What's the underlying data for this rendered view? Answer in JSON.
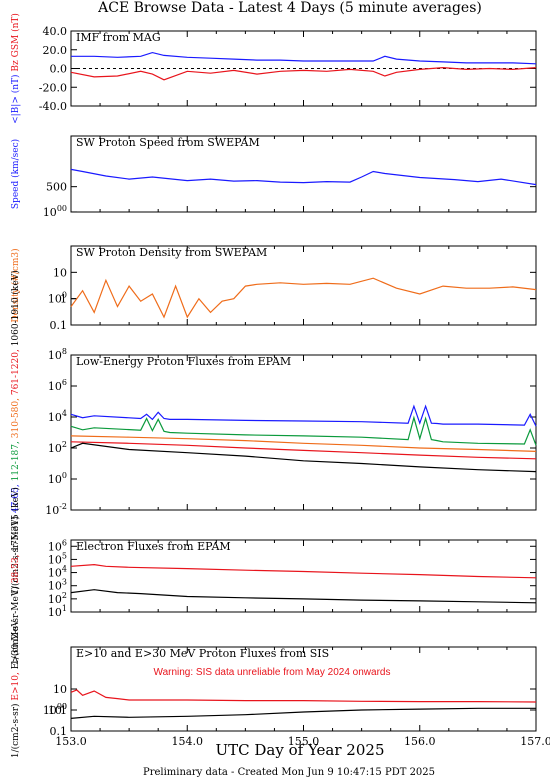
{
  "title": "ACE Browse Data - Latest 4 Days (5 minute averages)",
  "xlabel": "UTC Day of Year 2025",
  "footer": "Preliminary data - Created Mon Jun  9 10:47:15 PDT 2025",
  "colors": {
    "red": "#e8141c",
    "blue": "#1a1aff",
    "green": "#0b9a3c",
    "orange": "#ef6c1a",
    "black": "#000000",
    "warning": "#e8141c"
  },
  "chart_data": [
    {
      "type": "line",
      "title": "IMF from MAG",
      "ylabel_parts": [
        {
          "text": "<|B|> (nT)",
          "color": "blue"
        },
        {
          "text": "Bz GSM (nT)",
          "color": "red"
        }
      ],
      "xlim": [
        153.0,
        157.0
      ],
      "ylim": [
        -40,
        40
      ],
      "yscale": "linear",
      "yticks": [
        "-40.0",
        "-20.0",
        "0.0",
        "20.0",
        "40.0"
      ],
      "series": [
        {
          "color": "blue",
          "x": [
            153.0,
            153.2,
            153.4,
            153.6,
            153.7,
            153.8,
            154.0,
            154.2,
            154.4,
            154.6,
            154.8,
            155.0,
            155.2,
            155.4,
            155.6,
            155.7,
            155.8,
            156.0,
            156.2,
            156.4,
            156.6,
            156.8,
            157.0
          ],
          "y": [
            13,
            13,
            12,
            13,
            17,
            14,
            12,
            11,
            10,
            9,
            9,
            8,
            8,
            8,
            8,
            13,
            10,
            8,
            7,
            6,
            6,
            6,
            5
          ]
        },
        {
          "color": "red",
          "x": [
            153.0,
            153.2,
            153.4,
            153.6,
            153.7,
            153.8,
            154.0,
            154.2,
            154.4,
            154.6,
            154.8,
            155.0,
            155.2,
            155.4,
            155.6,
            155.7,
            155.8,
            156.0,
            156.2,
            156.4,
            156.6,
            156.8,
            157.0
          ],
          "y": [
            -4,
            -9,
            -8,
            -3,
            -6,
            -12,
            -3,
            -5,
            -2,
            -6,
            -3,
            -2,
            -3,
            -1,
            -3,
            -8,
            -4,
            -1,
            1,
            -1,
            0,
            -1,
            1
          ]
        }
      ]
    },
    {
      "type": "line",
      "title": "SW Proton Speed from SWEPAM",
      "ylabel_parts": [
        {
          "text": "Speed (km/sec)",
          "color": "blue"
        }
      ],
      "xlim": [
        153.0,
        157.0
      ],
      "ylim": [
        0,
        1500
      ],
      "yscale": "linear",
      "yticks": [
        "500",
        "1000"
      ],
      "series": [
        {
          "color": "blue",
          "x": [
            153.0,
            153.1,
            153.3,
            153.5,
            153.7,
            154.0,
            154.2,
            154.4,
            154.6,
            154.8,
            155.0,
            155.2,
            155.4,
            155.5,
            155.6,
            155.7,
            156.0,
            156.3,
            156.5,
            156.7,
            157.0
          ],
          "y": [
            840,
            800,
            710,
            650,
            690,
            620,
            650,
            610,
            620,
            590,
            580,
            600,
            590,
            690,
            800,
            760,
            680,
            640,
            600,
            650,
            540
          ]
        }
      ]
    },
    {
      "type": "line",
      "title": "SW Proton Density from SWEPAM",
      "ylabel_parts": [
        {
          "text": "Density (#/cm3)",
          "color": "orange"
        }
      ],
      "xlim": [
        153.0,
        157.0
      ],
      "ylim": [
        0.1,
        100
      ],
      "yscale": "log",
      "yticks": [
        "0.1",
        "1",
        "10",
        "100"
      ],
      "series": [
        {
          "color": "orange",
          "x": [
            153.0,
            153.1,
            153.2,
            153.3,
            153.4,
            153.5,
            153.6,
            153.7,
            153.8,
            153.9,
            154.0,
            154.1,
            154.2,
            154.3,
            154.4,
            154.5,
            154.6,
            154.8,
            155.0,
            155.2,
            155.4,
            155.6,
            155.8,
            156.0,
            156.2,
            156.4,
            156.6,
            156.8,
            157.0
          ],
          "y": [
            0.5,
            2,
            0.3,
            5,
            0.5,
            3,
            0.8,
            1.5,
            0.2,
            3,
            0.2,
            1,
            0.3,
            0.8,
            1,
            3,
            3.5,
            4,
            3.5,
            3.8,
            3.5,
            6,
            2.5,
            1.5,
            3,
            2.5,
            2.5,
            2.8,
            2.2
          ]
        }
      ]
    },
    {
      "type": "line",
      "title": "Low-Energy Proton Fluxes from EPAM",
      "ylabel_parts": [
        {
          "text": "1/(cm2-s-sr-MeV)",
          "color": "black"
        },
        {
          "text": "47-65,",
          "color": "blue"
        },
        {
          "text": "112-187,",
          "color": "green"
        },
        {
          "text": "310-580,",
          "color": "orange"
        },
        {
          "text": "761-1220,",
          "color": "red"
        },
        {
          "text": "1060-1910 (keV)",
          "color": "black"
        }
      ],
      "xlim": [
        153.0,
        157.0
      ],
      "ylim": [
        0.01,
        100000000
      ],
      "yscale": "log",
      "yticks": [
        "10-2",
        "100",
        "102",
        "104",
        "106",
        "108"
      ],
      "series": [
        {
          "color": "blue",
          "x": [
            153.0,
            153.1,
            153.2,
            153.6,
            153.65,
            153.7,
            153.75,
            153.8,
            153.85,
            154.0,
            154.5,
            155.0,
            155.5,
            155.9,
            155.95,
            156.0,
            156.05,
            156.1,
            156.15,
            156.2,
            156.5,
            156.9,
            156.95,
            157.0
          ],
          "y": [
            15000,
            9000,
            12000,
            8000,
            15000,
            7000,
            20000,
            8000,
            7000,
            7000,
            6000,
            5500,
            5000,
            4000,
            50000,
            4000,
            50000,
            4000,
            3800,
            3500,
            3500,
            3000,
            15000,
            2500
          ]
        },
        {
          "color": "green",
          "x": [
            153.0,
            153.1,
            153.2,
            153.6,
            153.65,
            153.7,
            153.75,
            153.8,
            153.85,
            154.0,
            154.5,
            155.0,
            155.5,
            155.9,
            155.95,
            156.0,
            156.05,
            156.1,
            156.15,
            156.2,
            156.5,
            156.9,
            156.95,
            157.0
          ],
          "y": [
            2500,
            1500,
            2000,
            1400,
            8000,
            1300,
            7000,
            1200,
            1000,
            900,
            700,
            600,
            500,
            350,
            9000,
            400,
            8000,
            350,
            300,
            250,
            200,
            180,
            1500,
            150
          ]
        },
        {
          "color": "orange",
          "x": [
            153.0,
            153.5,
            154.0,
            154.5,
            155.0,
            155.5,
            156.0,
            156.5,
            157.0
          ],
          "y": [
            600,
            500,
            400,
            300,
            200,
            150,
            100,
            80,
            60
          ]
        },
        {
          "color": "red",
          "x": [
            153.0,
            153.5,
            154.0,
            154.5,
            155.0,
            155.5,
            156.0,
            156.5,
            157.0
          ],
          "y": [
            250,
            200,
            150,
            100,
            70,
            50,
            35,
            25,
            20
          ]
        },
        {
          "color": "black",
          "x": [
            153.0,
            153.1,
            153.5,
            154.0,
            154.5,
            155.0,
            155.5,
            156.0,
            156.5,
            157.0
          ],
          "y": [
            100,
            200,
            80,
            50,
            30,
            15,
            10,
            6,
            4,
            3
          ]
        }
      ]
    },
    {
      "type": "line",
      "title": "Electron Fluxes from EPAM",
      "ylabel_parts": [
        {
          "text": "1/(cm2-s-sr-MeV)",
          "color": "black"
        },
        {
          "text": "38-53,",
          "color": "red"
        },
        {
          "text": "175-315 (keV)",
          "color": "black"
        }
      ],
      "xlim": [
        153.0,
        157.0
      ],
      "ylim": [
        10,
        3000000
      ],
      "yscale": "log",
      "yticks": [
        "101",
        "102",
        "103",
        "104",
        "105",
        "106"
      ],
      "series": [
        {
          "color": "red",
          "x": [
            153.0,
            153.2,
            153.3,
            153.5,
            154.0,
            154.5,
            155.0,
            155.5,
            156.0,
            156.5,
            157.0
          ],
          "y": [
            30000,
            40000,
            30000,
            25000,
            20000,
            15000,
            12000,
            9000,
            7000,
            5000,
            4000
          ]
        },
        {
          "color": "black",
          "x": [
            153.0,
            153.2,
            153.4,
            153.6,
            154.0,
            154.5,
            155.0,
            155.5,
            156.0,
            156.5,
            157.0
          ],
          "y": [
            300,
            500,
            300,
            250,
            150,
            120,
            100,
            80,
            70,
            60,
            50
          ]
        }
      ]
    },
    {
      "type": "line",
      "title": "E>10 and E>30 MeV Proton Fluxes from SIS",
      "annotation": "Warning: SIS data unreliable from May 2024 onwards",
      "ylabel_parts": [
        {
          "text": "1/(cm2-s-sr)",
          "color": "black"
        },
        {
          "text": "E>10,",
          "color": "red"
        },
        {
          "text": "E>30 MeV",
          "color": "black"
        }
      ],
      "xlim": [
        153.0,
        157.0
      ],
      "ylim": [
        0.1,
        1000
      ],
      "yscale": "log",
      "yticks": [
        "0.1",
        "1",
        "10",
        "100",
        "1000"
      ],
      "series": [
        {
          "color": "red",
          "x": [
            153.0,
            153.05,
            153.1,
            153.2,
            153.3,
            153.4,
            153.5,
            154.0,
            154.5,
            155.0,
            155.5,
            156.0,
            156.5,
            157.0
          ],
          "y": [
            7,
            9,
            5,
            8,
            4,
            3.5,
            3,
            3,
            2.8,
            2.8,
            2.6,
            2.5,
            2.5,
            2.4
          ]
        },
        {
          "color": "black",
          "x": [
            153.0,
            153.2,
            153.5,
            154.0,
            154.5,
            155.0,
            155.5,
            156.0,
            156.5,
            157.0
          ],
          "y": [
            0.4,
            0.5,
            0.45,
            0.5,
            0.6,
            0.8,
            1.0,
            1.1,
            1.2,
            1.2
          ]
        }
      ]
    }
  ],
  "xaxis": {
    "ticks": [
      "153.0",
      "154.0",
      "155.0",
      "156.0",
      "157.0"
    ]
  }
}
